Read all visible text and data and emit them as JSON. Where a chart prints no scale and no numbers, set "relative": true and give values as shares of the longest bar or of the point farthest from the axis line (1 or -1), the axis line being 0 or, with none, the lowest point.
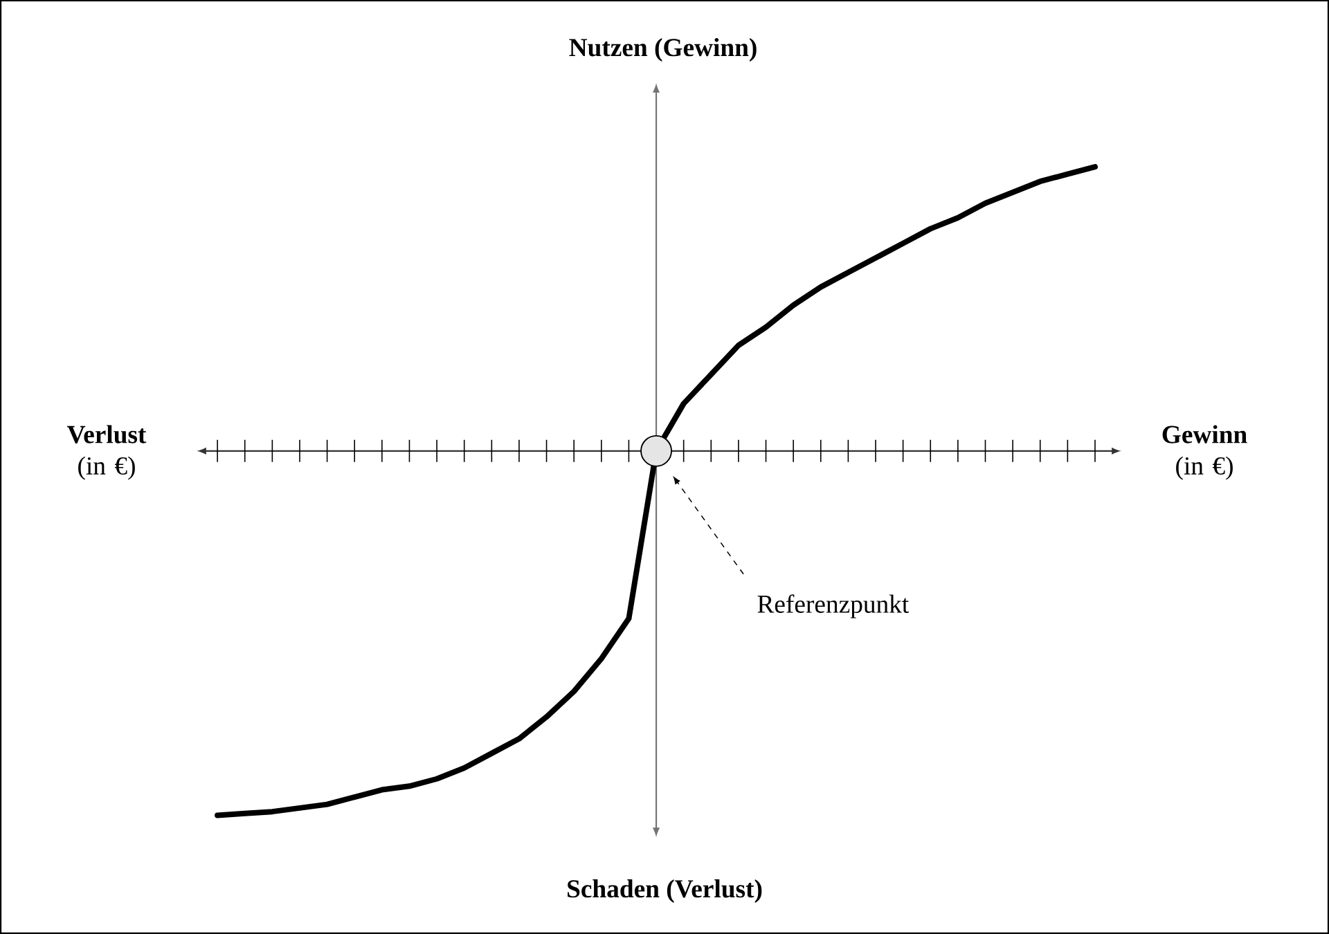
{
  "chart_data": {
    "type": "line",
    "relative": true,
    "ylabel": "Nutzen (Gewinn)",
    "xlabel": "**Gewinn** (in €)",
    "annotations": [
      "**Verlust** (in €)",
      "Schaden (Verlust)",
      "Referenzpunkt"
    ],
    "categories": [
      null,
      null,
      null,
      null,
      null,
      null,
      null,
      null,
      null,
      null,
      null,
      null,
      null,
      null,
      null,
      null,
      null,
      null,
      null,
      null,
      null,
      null,
      null,
      null,
      null,
      null,
      null,
      null,
      null,
      null,
      null,
      null,
      null
    ],
    "series": [
      {
        "color": "#000000",
        "values": [
          -1,
          -0.995,
          -0.99,
          -0.98,
          -0.97,
          -0.95,
          -0.93,
          -0.92,
          -0.9,
          -0.87,
          -0.83,
          -0.79,
          -0.73,
          -0.66,
          -0.57,
          -0.46,
          0,
          0.13,
          0.21,
          0.29,
          0.34,
          0.4,
          0.45,
          0.49,
          0.53,
          0.57,
          0.61,
          0.64,
          0.68,
          0.71,
          0.74,
          0.76,
          0.78
        ]
      }
    ]
  }
}
